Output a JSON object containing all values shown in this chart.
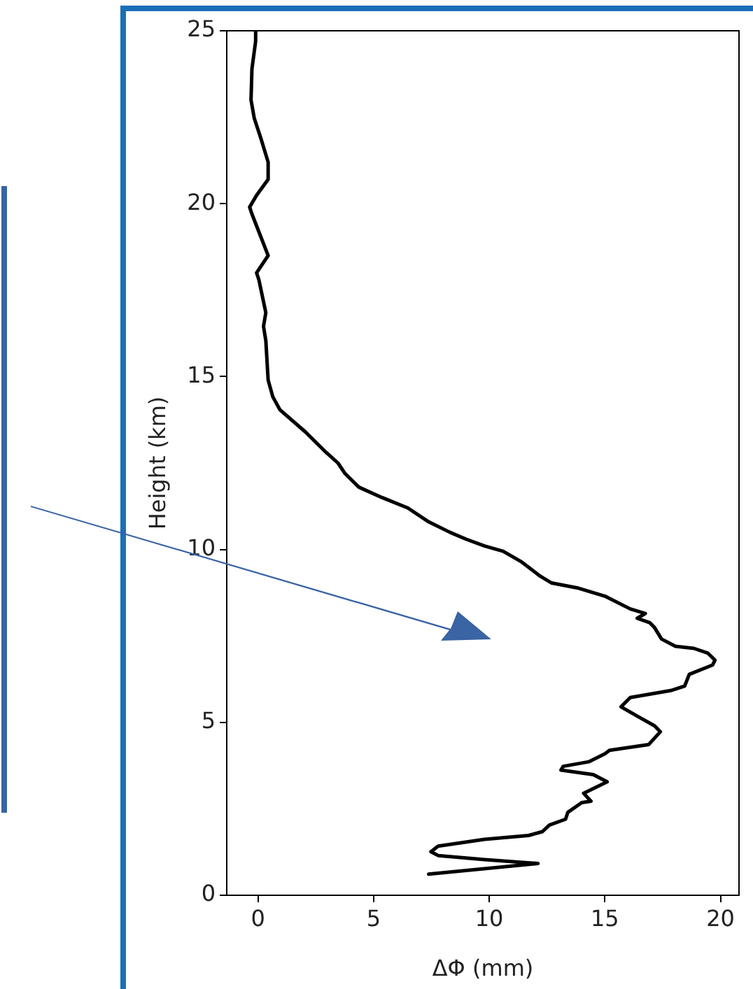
{
  "chart_data": {
    "type": "line",
    "xlabel": "ΔΦ (mm)",
    "ylabel": "Height (km)",
    "marker": "none",
    "line_style": "solid",
    "xlim": [
      -1.35,
      20.8
    ],
    "ylim": [
      0,
      25
    ],
    "xticks": [
      0,
      5,
      10,
      15,
      20
    ],
    "yticks": [
      0,
      5,
      10,
      15,
      20,
      25
    ],
    "x": [
      7.38,
      12.11,
      9.8,
      7.79,
      7.48,
      7.79,
      9.8,
      11.7,
      12.3,
      12.6,
      13.3,
      13.4,
      14.0,
      14.4,
      14.08,
      15.1,
      14.5,
      13.1,
      13.2,
      14.3,
      15.0,
      15.2,
      16.9,
      17.4,
      17.15,
      16.4,
      15.7,
      16.1,
      17.85,
      18.45,
      18.65,
      19.66,
      19.76,
      19.46,
      18.85,
      18.05,
      17.45,
      17.15,
      16.95,
      16.4,
      16.75,
      16.1,
      15.0,
      13.8,
      12.7,
      12.2,
      11.4,
      10.6,
      9.8,
      8.99,
      8.29,
      7.38,
      6.48,
      5.37,
      4.37,
      3.76,
      3.46,
      2.96,
      2.05,
      0.95,
      0.64,
      0.44,
      0.34,
      0.24,
      0.34,
      0.04,
      -0.06,
      0.44,
      -0.26,
      -0.36,
      -0.06,
      0.44,
      0.44,
      0.14,
      -0.16,
      -0.3,
      -0.26,
      -0.1,
      -0.1
    ],
    "series": [
      {
        "color": "#000000",
        "values": [
          0.61,
          0.92,
          1.03,
          1.15,
          1.26,
          1.42,
          1.62,
          1.73,
          1.84,
          2.03,
          2.2,
          2.4,
          2.68,
          2.72,
          2.95,
          3.28,
          3.49,
          3.62,
          3.73,
          3.86,
          4.09,
          4.19,
          4.36,
          4.73,
          4.9,
          5.18,
          5.45,
          5.72,
          5.92,
          6.05,
          6.39,
          6.66,
          6.8,
          7.0,
          7.14,
          7.2,
          7.41,
          7.74,
          7.88,
          8.01,
          8.15,
          8.28,
          8.65,
          8.89,
          9.03,
          9.23,
          9.64,
          9.95,
          10.1,
          10.3,
          10.5,
          10.8,
          11.2,
          11.5,
          11.8,
          12.2,
          12.5,
          12.8,
          13.4,
          14.04,
          14.42,
          14.9,
          16.04,
          16.45,
          16.85,
          17.8,
          18.0,
          18.5,
          19.7,
          19.9,
          20.24,
          20.7,
          21.2,
          21.86,
          22.47,
          23.0,
          23.9,
          24.7,
          25.0
        ]
      }
    ]
  }
}
